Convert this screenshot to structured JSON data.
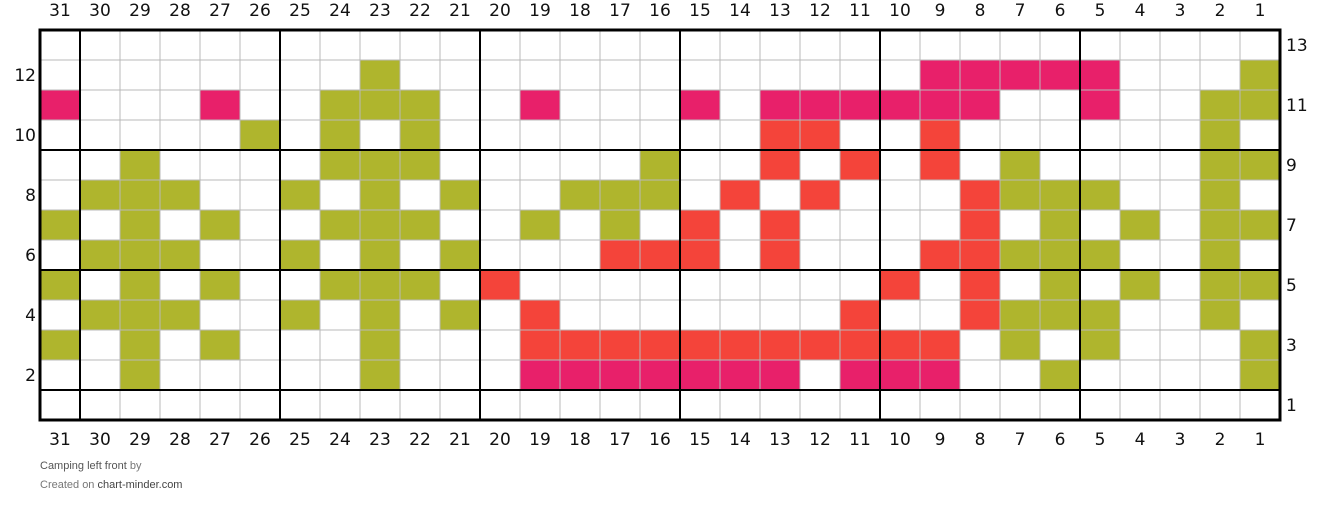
{
  "chart_data": {
    "type": "grid",
    "columns": 31,
    "rows": 13,
    "column_numbers": [
      "31",
      "30",
      "29",
      "28",
      "27",
      "26",
      "25",
      "24",
      "23",
      "22",
      "21",
      "20",
      "19",
      "18",
      "17",
      "16",
      "15",
      "14",
      "13",
      "12",
      "11",
      "10",
      "9",
      "8",
      "7",
      "6",
      "5",
      "4",
      "3",
      "2",
      "1"
    ],
    "left_row_numbers": [
      "12",
      "10",
      "8",
      "6",
      "4",
      "2"
    ],
    "right_row_numbers": [
      "13",
      "11",
      "9",
      "7",
      "5",
      "3",
      "1"
    ],
    "legend_colors": {
      ".": "#ffffff",
      "G": "#afb52d",
      "P": "#e8206a",
      "R": "#f4443a"
    },
    "pattern_rows_top_to_bottom": [
      "...............................",
      "........G.............PPPPP...G",
      "P...P..GGG..P...P.PPPPPP..P..GG",
      ".....G.G.G........RR..R......G.G",
      "..G....GGG.....G..R.R.R.G....GG",
      ".GGG..G.G.G..GGG.R.R...RGGG..G.G",
      "G.G.G..GGG..G.G.R.R....R.G.G.GG",
      ".GGG..G.G.G...RRR.R...RRGGG..G.G",
      "G.G.G..GGG.R.........R.R.G.G.GG",
      ".GGG..G.G.G.R.......R..RGGG..G.G",
      "G.G.G...G...RRRRRRRRRRR.G.G...G",
      "..G.....G...PPPPPPP.PPP..G....G",
      "..............................."
    ]
  },
  "footer": {
    "title": "Camping left front",
    "by": "by",
    "created_on": "Created on",
    "site": "chart-minder.com"
  }
}
